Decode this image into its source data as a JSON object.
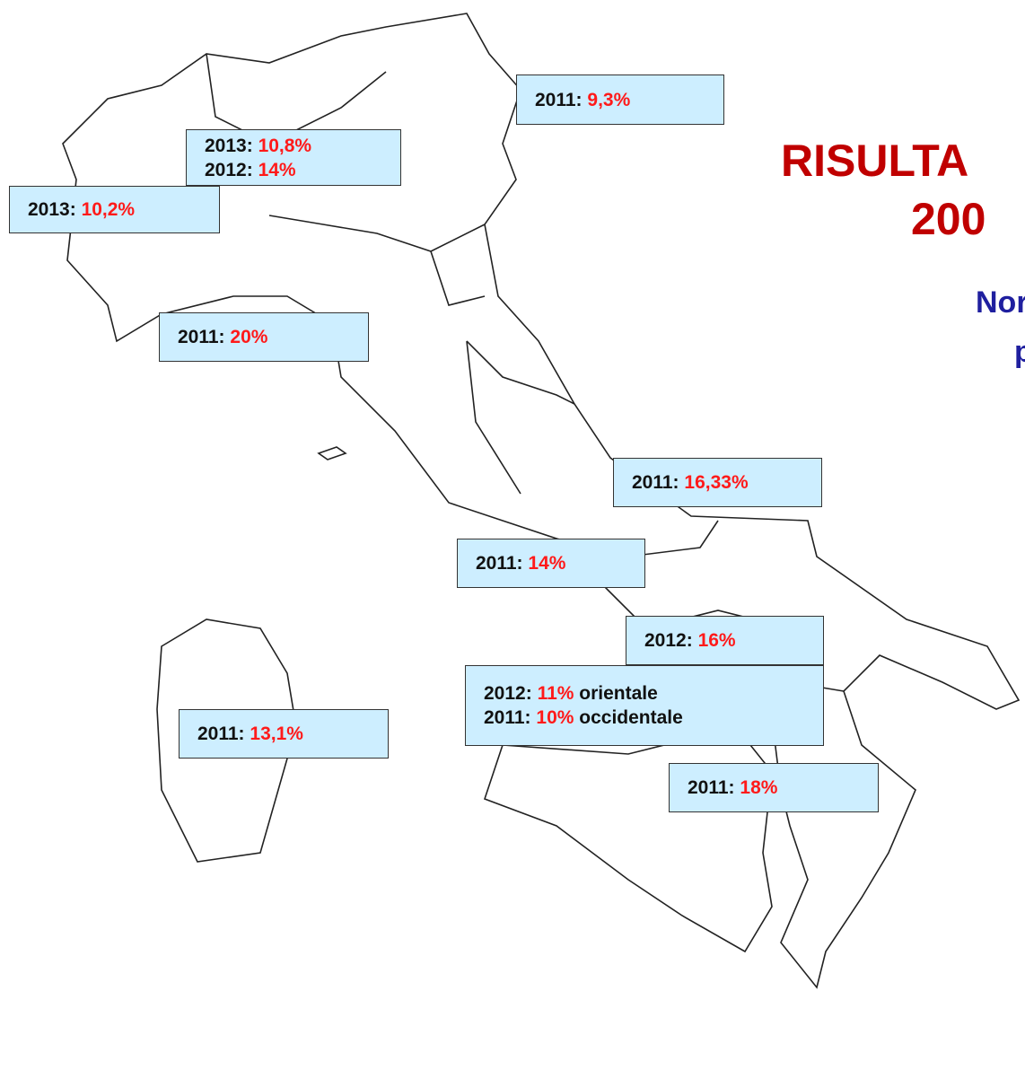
{
  "title_fragments": [
    "RISULTA",
    "200",
    "Nor",
    "p"
  ],
  "labels": [
    {
      "lines": [
        {
          "year": "2011:",
          "value": "9,3%"
        }
      ]
    },
    {
      "lines": [
        {
          "year": "2013:",
          "value": "10,8%"
        },
        {
          "year": "2012:",
          "value": "14%"
        }
      ]
    },
    {
      "lines": [
        {
          "year": "2013:",
          "value": "10,2%"
        }
      ]
    },
    {
      "lines": [
        {
          "year": "2011:",
          "value": "20%"
        }
      ]
    },
    {
      "lines": [
        {
          "year": "2011:",
          "value": "16,33%"
        }
      ]
    },
    {
      "lines": [
        {
          "year": "2011:",
          "value": "14%"
        }
      ]
    },
    {
      "lines": [
        {
          "year": "2012:",
          "value": "16%"
        }
      ]
    },
    {
      "lines": [
        {
          "year": "2011:",
          "value": "13,1%"
        }
      ]
    },
    {
      "lines": [
        {
          "year": "2011:",
          "value": "18%"
        }
      ]
    },
    {
      "lines": [
        {
          "year": "2012:",
          "value": "11%",
          "note": "orientale"
        },
        {
          "year": "2011:",
          "value": "10%",
          "note": "occidentale"
        }
      ]
    }
  ]
}
